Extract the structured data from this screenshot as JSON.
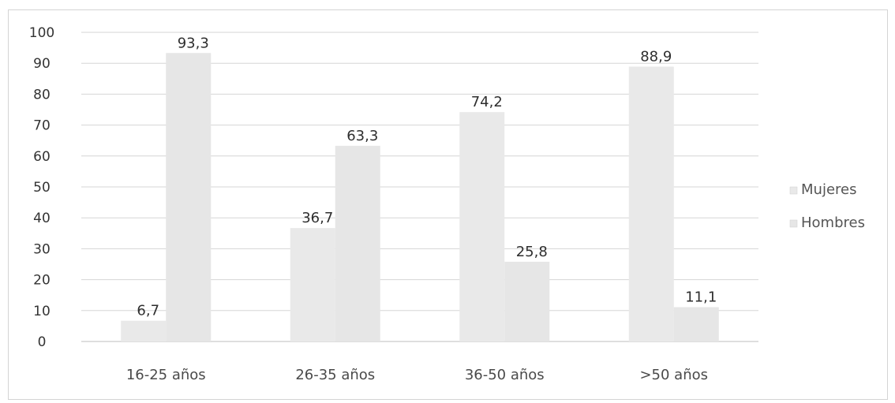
{
  "chart_data": {
    "type": "bar",
    "title": "",
    "xlabel": "",
    "ylabel": "",
    "categories": [
      "16-25 años",
      "26-35 años",
      "36-50 años",
      ">50 años"
    ],
    "series": [
      {
        "name": "Mujeres",
        "values": [
          6.7,
          36.7,
          74.2,
          88.9
        ],
        "labels": [
          "6,7",
          "36,7",
          "74,2",
          "88,9"
        ],
        "color": "#e9e9e9",
        "label_color": "#2e2e2e"
      },
      {
        "name": "Hombres",
        "values": [
          93.3,
          63.3,
          25.8,
          11.1
        ],
        "labels": [
          "93,3",
          "63,3",
          "25,8",
          "11,1"
        ],
        "color": "#e6e6e6",
        "label_color": "#2e2e2e"
      }
    ],
    "ylim": [
      0,
      100
    ],
    "yticks": [
      "0",
      "10",
      "20",
      "30",
      "40",
      "50",
      "60",
      "70",
      "80",
      "90",
      "100"
    ],
    "grid": true,
    "legend_position": "right",
    "gridline_color": "#d6d6d6",
    "axis_color": "#bdbdbd"
  }
}
